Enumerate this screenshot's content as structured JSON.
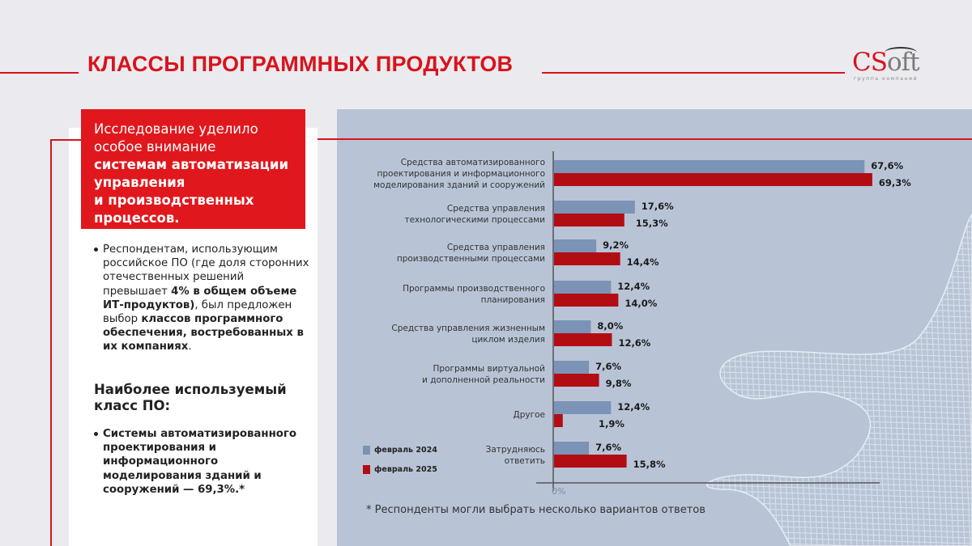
{
  "header": {
    "title": "КЛАССЫ ПРОГРАММНЫХ ПРОДУКТОВ",
    "logo_text_cs": "CS",
    "logo_text_oft": "oft",
    "logo_subtitle": "группа компаний"
  },
  "colors": {
    "accent_red": "#d8131c",
    "bar_2024": "#7b93b6",
    "bar_2025": "#b30d14",
    "chart_bg": "#b8c4d6"
  },
  "intro": {
    "line1": "Исследование уделило",
    "line2": "особое внимание",
    "bold1": "системам автоматизации",
    "bold2": "управления",
    "bold3": "и производственных",
    "bold4": "процессов."
  },
  "bullet1": {
    "t1": "Респондентам, использующим российское ПО (где доля сторонних отечественных решений превышает ",
    "b1": "4% в общем объеме ИТ-продуктов)",
    "t2": ", был предложен выбор ",
    "b2": "классов программного обеспечения, востребованных в их компаниях",
    "t3": "."
  },
  "most_used": {
    "title": "Наиболее используемый класс ПО:",
    "item": "Системы автоматизированного проектирования и информационного моделирования зданий и сооружений — 69,3%.*"
  },
  "footnote": "* Респонденты могли выбрать несколько вариантов ответов",
  "chart_data": {
    "type": "bar",
    "orientation": "horizontal",
    "title": "",
    "xlabel": "",
    "ylabel": "",
    "xlim": [
      0,
      70
    ],
    "x_tick_labels": [
      "0%"
    ],
    "grid": false,
    "legend_position": "bottom-left",
    "categories": [
      [
        "Средства автоматизированного",
        "проектирования и информационного",
        "моделирования зданий и сооружений"
      ],
      [
        "Средства управления",
        "технологическими процессами"
      ],
      [
        "Средства управления",
        "производственными процессами"
      ],
      [
        "Программы производственного",
        "планирования"
      ],
      [
        "Средства управления жизненным",
        "циклом изделия"
      ],
      [
        "Программы виртуальной",
        "и дополненной реальности"
      ],
      [
        "Другое"
      ],
      [
        "Затрудняюсь",
        "ответить"
      ]
    ],
    "series": [
      {
        "name": "февраль 2024",
        "color": "#7b93b6",
        "values": [
          67.6,
          17.6,
          9.2,
          12.4,
          8.0,
          7.6,
          12.4,
          7.6
        ],
        "labels": [
          "67,6%",
          "17,6%",
          "9,2%",
          "12,4%",
          "8,0%",
          "7,6%",
          "12,4%",
          "7,6%"
        ]
      },
      {
        "name": "февраль 2025",
        "color": "#b30d14",
        "values": [
          69.3,
          15.3,
          14.4,
          14.0,
          12.6,
          9.8,
          1.9,
          15.8
        ],
        "labels": [
          "69,3%",
          "15,3%",
          "14,4%",
          "14,0%",
          "12,6%",
          "9,8%",
          "1,9%",
          "15,8%"
        ]
      }
    ]
  }
}
